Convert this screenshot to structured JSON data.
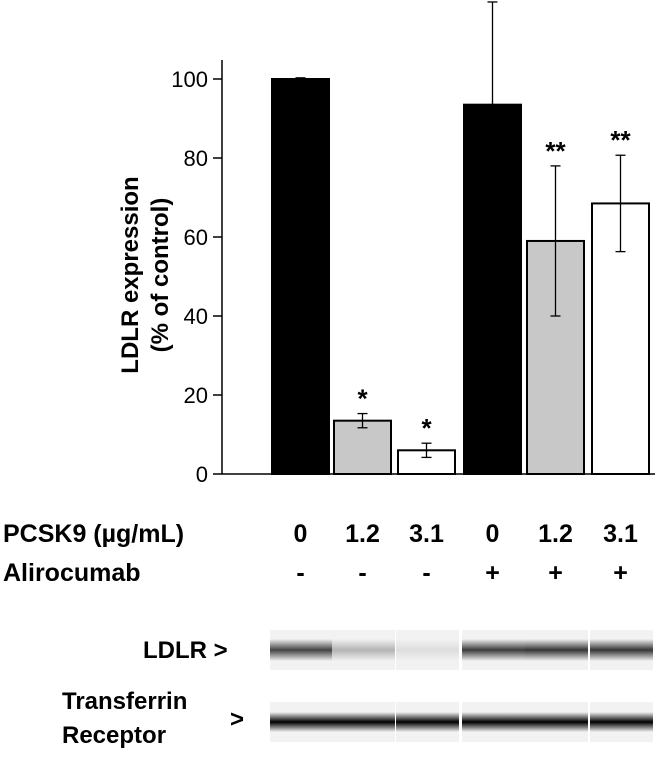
{
  "chart_data": {
    "type": "bar",
    "ylabel_line1": "LDLR expression",
    "ylabel_line2": "(% of control)",
    "ylim": [
      0,
      100
    ],
    "yticks": [
      "0",
      "20",
      "40",
      "60",
      "80",
      "100"
    ],
    "bars": [
      {
        "value": 100,
        "error": 0.3,
        "fill": "#000000",
        "sig": ""
      },
      {
        "value": 13.5,
        "error": 1.8,
        "fill": "#c8c8c8",
        "sig": "*"
      },
      {
        "value": 6,
        "error": 1.8,
        "fill": "#ffffff",
        "sig": "*"
      },
      {
        "value": 93.5,
        "error": 26,
        "fill": "#000000",
        "sig": ""
      },
      {
        "value": 59,
        "error": 19,
        "fill": "#c8c8c8",
        "sig": "**"
      },
      {
        "value": 68.5,
        "error": 12.2,
        "fill": "#ffffff",
        "sig": "**"
      }
    ]
  },
  "conditions": {
    "pcsk9_label": "PCSK9 (µg/mL)",
    "alirocumab_label": "Alirocumab",
    "pcsk9": [
      "0",
      "1.2",
      "3.1",
      "0",
      "1.2",
      "3.1"
    ],
    "alirocumab": [
      "-",
      "-",
      "-",
      "+",
      "+",
      "+"
    ]
  },
  "blot": {
    "ldlr_label": "LDLR >",
    "tfr_label_line1": "Transferrin",
    "tfr_label_line2": "Receptor",
    "tfr_arrow": ">",
    "ldlr_intensity": [
      0.72,
      0.25,
      0.08,
      0.75,
      0.78,
      0.78
    ],
    "tfr_intensity": [
      1,
      1,
      1,
      1,
      1,
      1
    ]
  }
}
